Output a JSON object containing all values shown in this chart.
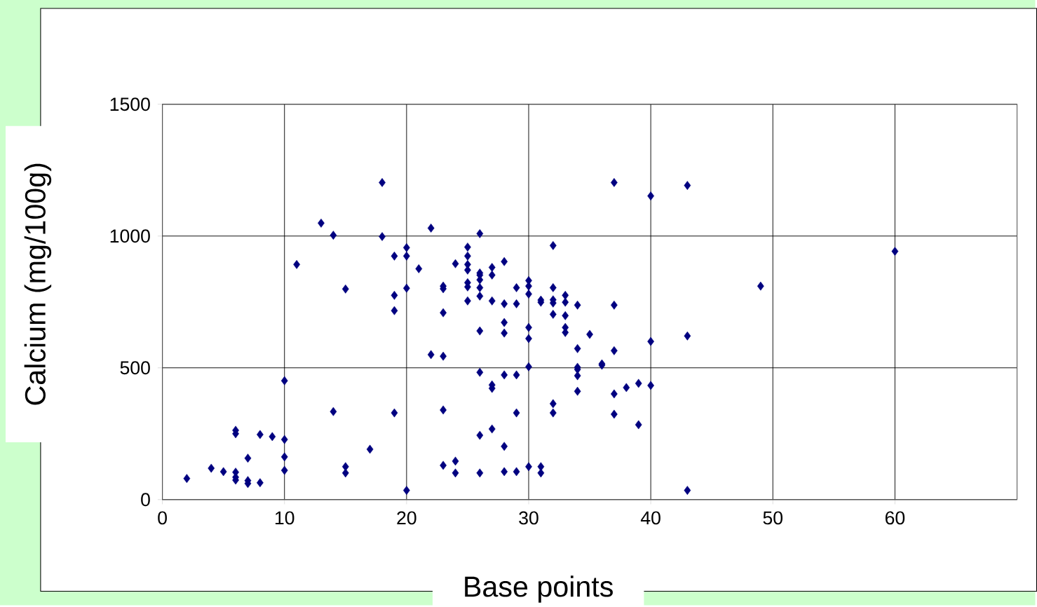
{
  "chart_data": {
    "type": "scatter",
    "xlabel": "Base points",
    "ylabel": "Calcium (mg/100g)",
    "xlim": [
      0,
      70
    ],
    "xticks": [
      0,
      10,
      20,
      30,
      40,
      50,
      60
    ],
    "ylim": [
      0,
      1500
    ],
    "yticks": [
      0,
      500,
      1000,
      1500
    ],
    "grid": true,
    "marker": "diamond",
    "series": [
      {
        "color": "#000080",
        "x": [
          2,
          4,
          5,
          6,
          6,
          6,
          6,
          6,
          7,
          7,
          7,
          8,
          8,
          9,
          10,
          10,
          10,
          10,
          11,
          13,
          14,
          14,
          15,
          15,
          15,
          17,
          18,
          18,
          19,
          19,
          19,
          19,
          20,
          20,
          20,
          20,
          21,
          22,
          22,
          23,
          23,
          23,
          23,
          23,
          23,
          24,
          24,
          24,
          25,
          25,
          25,
          25,
          25,
          25,
          25,
          26,
          26,
          26,
          26,
          26,
          26,
          26,
          26,
          26,
          26,
          27,
          27,
          27,
          27,
          27,
          27,
          28,
          28,
          28,
          28,
          28,
          28,
          28,
          29,
          29,
          29,
          29,
          29,
          30,
          30,
          30,
          30,
          30,
          30,
          30,
          31,
          31,
          31,
          31,
          32,
          32,
          32,
          32,
          32,
          32,
          32,
          33,
          33,
          33,
          33,
          33,
          34,
          34,
          34,
          34,
          34,
          34,
          35,
          36,
          36,
          37,
          37,
          37,
          37,
          37,
          38,
          39,
          39,
          40,
          40,
          40,
          43,
          43,
          43,
          49,
          60
        ],
        "values": [
          80,
          119,
          106,
          263,
          250,
          104,
          85,
          74,
          157,
          72,
          61,
          247,
          64,
          239,
          451,
          228,
          162,
          111,
          892,
          1049,
          1003,
          334,
          799,
          125,
          101,
          191,
          1203,
          998,
          924,
          775,
          717,
          329,
          956,
          924,
          802,
          35,
          876,
          1030,
          550,
          810,
          800,
          709,
          544,
          340,
          130,
          895,
          146,
          101,
          958,
          924,
          892,
          871,
          823,
          807,
          754,
          1009,
          860,
          852,
          834,
          804,
          772,
          640,
          483,
          244,
          101,
          881,
          852,
          754,
          435,
          422,
          268,
          903,
          743,
          672,
          632,
          473,
          202,
          106,
          804,
          743,
          473,
          329,
          106,
          831,
          810,
          780,
          653,
          611,
          504,
          125,
          757,
          749,
          125,
          101,
          964,
          804,
          758,
          746,
          703,
          364,
          329,
          775,
          749,
          698,
          653,
          634,
          738,
          573,
          502,
          494,
          470,
          411,
          627,
          515,
          510,
          1203,
          738,
          565,
          401,
          324,
          425,
          441,
          284,
          1152,
          600,
          433,
          1192,
          621,
          35,
          810,
          942
        ]
      }
    ]
  }
}
